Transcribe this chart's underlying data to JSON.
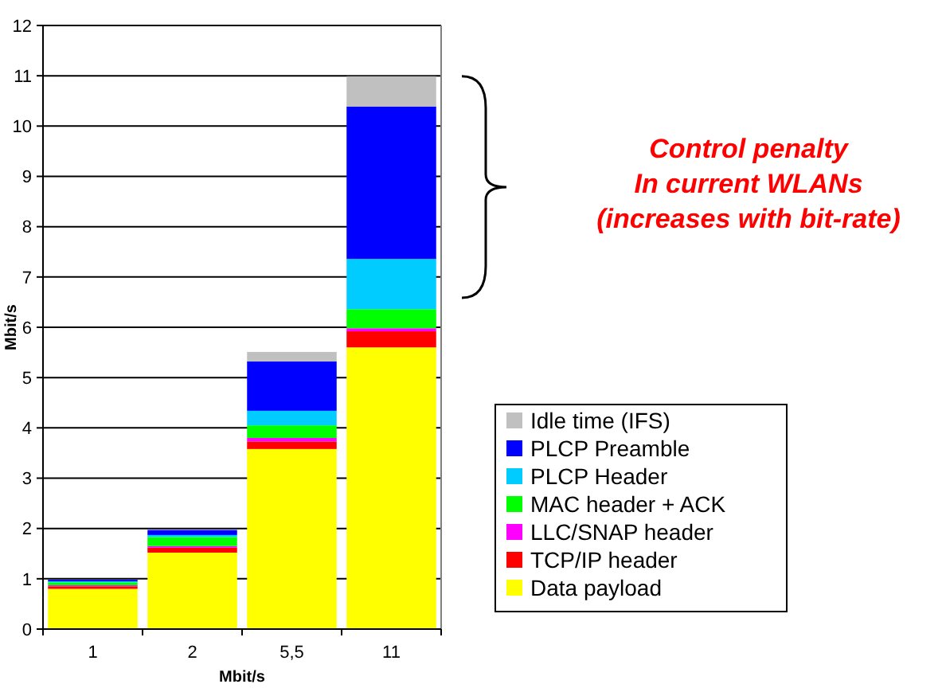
{
  "chart_data": {
    "type": "bar",
    "stacked": true,
    "xlabel": "Mbit/s",
    "ylabel": "Mbit/s",
    "categories": [
      "1",
      "2",
      "5,5",
      "11"
    ],
    "series": [
      {
        "name": "Data payload",
        "color": "#ffff00",
        "values": [
          0.8,
          1.52,
          3.58,
          5.6
        ]
      },
      {
        "name": "TCP/IP header",
        "color": "#ff0000",
        "values": [
          0.05,
          0.1,
          0.15,
          0.32
        ]
      },
      {
        "name": "LLC/SNAP header",
        "color": "#ff00ff",
        "values": [
          0.02,
          0.03,
          0.07,
          0.06
        ]
      },
      {
        "name": "MAC header + ACK",
        "color": "#00ff00",
        "values": [
          0.06,
          0.18,
          0.25,
          0.38
        ]
      },
      {
        "name": "PLCP Header",
        "color": "#00ccff",
        "values": [
          0.02,
          0.04,
          0.29,
          1.0
        ]
      },
      {
        "name": "PLCP Preamble",
        "color": "#0000ff",
        "values": [
          0.03,
          0.1,
          0.98,
          3.03
        ]
      },
      {
        "name": "Idle time (IFS)",
        "color": "#c0c0c0",
        "values": [
          null,
          null,
          0.19,
          0.6
        ]
      }
    ],
    "ylim": [
      0,
      12
    ],
    "yticks": [
      0,
      1,
      2,
      3,
      4,
      5,
      6,
      7,
      8,
      9,
      10,
      11,
      12
    ],
    "grid": "y",
    "legend": "bottom right",
    "annotations": [
      "Control penalty\nIn current WLANs\n(increases with bit-rate)"
    ]
  }
}
